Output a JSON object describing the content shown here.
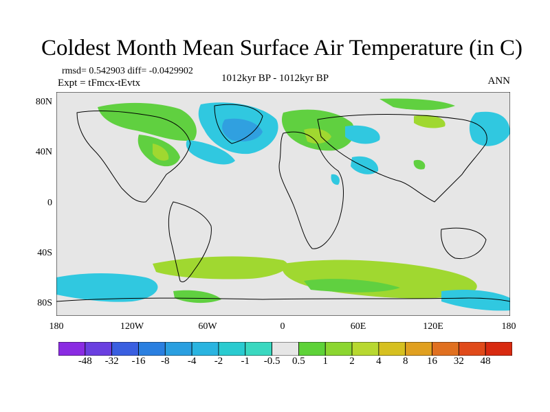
{
  "title": "Coldest Month Mean Surface Air Temperature (in C)",
  "stats": "rmsd= 0.542903 diff= -0.0429902",
  "expt": "Expt = tFmcx-tEvtx",
  "period": "1012kyr BP - 1012kyr BP",
  "season": "ANN",
  "chart_data": {
    "type": "heatmap",
    "xaxis": {
      "range": [
        -180,
        180
      ],
      "ticks": [
        "180",
        "120W",
        "60W",
        "0",
        "60E",
        "120E",
        "180"
      ]
    },
    "yaxis": {
      "range": [
        -90,
        90
      ],
      "ticks": [
        "80N",
        "40N",
        "0",
        "40S",
        "80S"
      ]
    },
    "colorbar": {
      "labels": [
        "-48",
        "-32",
        "-16",
        "-8",
        "-4",
        "-2",
        "-1",
        "-0.5",
        "0.5",
        "1",
        "2",
        "4",
        "8",
        "16",
        "32",
        "48"
      ],
      "colors": [
        "#8a2be2",
        "#6a3fe0",
        "#3a5fe0",
        "#2a7fe0",
        "#2a9fe0",
        "#2ab4e0",
        "#2acbd0",
        "#3ad8c0",
        "#e6e6e6",
        "#5ed238",
        "#8cd630",
        "#b8d830",
        "#d6c020",
        "#e0a020",
        "#e07020",
        "#e04a1a",
        "#d82a10"
      ]
    },
    "regions": [
      {
        "name": "Arctic Canada / Greenland",
        "level": "-1",
        "color": "#30c8e0"
      },
      {
        "name": "Greenland interior",
        "level": "-2",
        "color": "#30a0e0"
      },
      {
        "name": "Scandinavia / Europe",
        "level": "1",
        "color": "#70d030"
      },
      {
        "name": "Eastern North America",
        "level": "1",
        "color": "#60d040"
      },
      {
        "name": "Southern Ocean band",
        "level": "1",
        "color": "#a0d830"
      },
      {
        "name": "Antarctic coast",
        "level": "-1",
        "color": "#30c8e0"
      }
    ]
  }
}
